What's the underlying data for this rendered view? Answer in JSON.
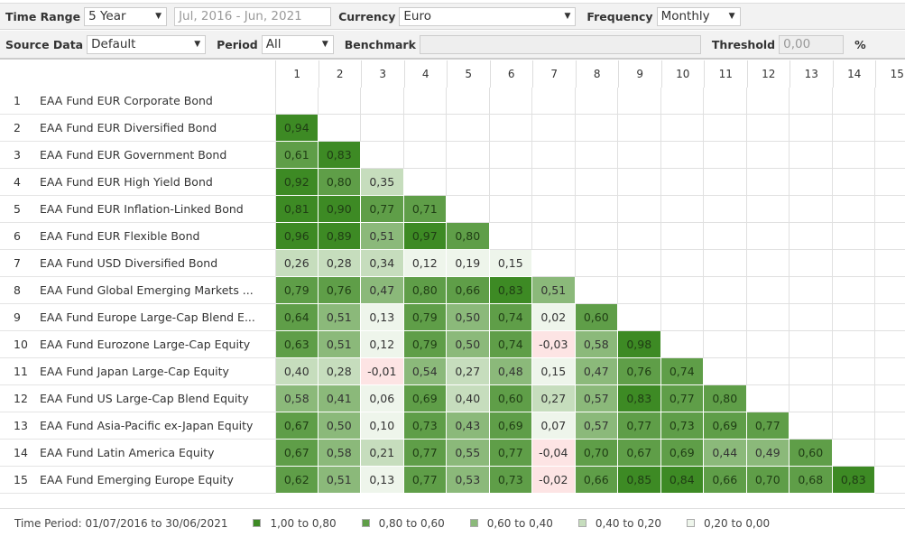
{
  "toolbar": {
    "time_range_label": "Time Range",
    "time_range_value": "5 Year",
    "date_range": "Jul, 2016 - Jun, 2021",
    "currency_label": "Currency",
    "currency_value": "Euro",
    "frequency_label": "Frequency",
    "frequency_value": "Monthly",
    "source_data_label": "Source Data",
    "source_data_value": "Default",
    "period_label": "Period",
    "period_value": "All",
    "benchmark_label": "Benchmark",
    "benchmark_value": "",
    "threshold_label": "Threshold",
    "threshold_placeholder": "0,00",
    "percent": "%"
  },
  "colors": {
    "l1": "#3d8a24",
    "l2": "#5f9e48",
    "l3": "#8bb97a",
    "l4": "#c6ddbd",
    "l5": "#eef5eb",
    "neg": "#fde4e4"
  },
  "columns": [
    "1",
    "2",
    "3",
    "4",
    "5",
    "6",
    "7",
    "8",
    "9",
    "10",
    "11",
    "12",
    "13",
    "14",
    "15"
  ],
  "rows": [
    {
      "n": "1",
      "name": "EAA Fund EUR Corporate Bond",
      "values": []
    },
    {
      "n": "2",
      "name": "EAA Fund EUR Diversified Bond",
      "values": [
        "0,94"
      ]
    },
    {
      "n": "3",
      "name": "EAA Fund EUR Government Bond",
      "values": [
        "0,61",
        "0,83"
      ]
    },
    {
      "n": "4",
      "name": "EAA Fund EUR High Yield Bond",
      "values": [
        "0,92",
        "0,80",
        "0,35"
      ]
    },
    {
      "n": "5",
      "name": "EAA Fund EUR Inflation-Linked Bond",
      "values": [
        "0,81",
        "0,90",
        "0,77",
        "0,71"
      ]
    },
    {
      "n": "6",
      "name": "EAA Fund EUR Flexible Bond",
      "values": [
        "0,96",
        "0,89",
        "0,51",
        "0,97",
        "0,80"
      ]
    },
    {
      "n": "7",
      "name": "EAA Fund USD Diversified Bond",
      "values": [
        "0,26",
        "0,28",
        "0,34",
        "0,12",
        "0,19",
        "0,15"
      ]
    },
    {
      "n": "8",
      "name": "EAA Fund Global Emerging Markets ...",
      "values": [
        "0,79",
        "0,76",
        "0,47",
        "0,80",
        "0,66",
        "0,83",
        "0,51"
      ]
    },
    {
      "n": "9",
      "name": "EAA Fund Europe Large-Cap Blend E...",
      "values": [
        "0,64",
        "0,51",
        "0,13",
        "0,79",
        "0,50",
        "0,74",
        "0,02",
        "0,60"
      ]
    },
    {
      "n": "10",
      "name": "EAA Fund Eurozone Large-Cap Equity",
      "values": [
        "0,63",
        "0,51",
        "0,12",
        "0,79",
        "0,50",
        "0,74",
        "-0,03",
        "0,58",
        "0,98"
      ]
    },
    {
      "n": "11",
      "name": "EAA Fund Japan Large-Cap Equity",
      "values": [
        "0,40",
        "0,28",
        "-0,01",
        "0,54",
        "0,27",
        "0,48",
        "0,15",
        "0,47",
        "0,76",
        "0,74"
      ]
    },
    {
      "n": "12",
      "name": "EAA Fund US Large-Cap Blend Equity",
      "values": [
        "0,58",
        "0,41",
        "0,06",
        "0,69",
        "0,40",
        "0,60",
        "0,27",
        "0,57",
        "0,83",
        "0,77",
        "0,80"
      ]
    },
    {
      "n": "13",
      "name": "EAA Fund Asia-Pacific ex-Japan Equity",
      "values": [
        "0,67",
        "0,50",
        "0,10",
        "0,73",
        "0,43",
        "0,69",
        "0,07",
        "0,57",
        "0,77",
        "0,73",
        "0,69",
        "0,77"
      ]
    },
    {
      "n": "14",
      "name": "EAA Fund Latin America Equity",
      "values": [
        "0,67",
        "0,58",
        "0,21",
        "0,77",
        "0,55",
        "0,77",
        "-0,04",
        "0,70",
        "0,67",
        "0,69",
        "0,44",
        "0,49",
        "0,60"
      ]
    },
    {
      "n": "15",
      "name": "EAA Fund Emerging Europe Equity",
      "values": [
        "0,62",
        "0,51",
        "0,13",
        "0,77",
        "0,53",
        "0,73",
        "-0,02",
        "0,66",
        "0,85",
        "0,84",
        "0,66",
        "0,70",
        "0,68",
        "0,83"
      ]
    }
  ],
  "legend": {
    "time_period": "Time Period: 01/07/2016 to 30/06/2021",
    "items": [
      {
        "label": "1,00 to 0,80",
        "level": "l1"
      },
      {
        "label": "0,80 to 0,60",
        "level": "l2"
      },
      {
        "label": "0,60 to 0,40",
        "level": "l3"
      },
      {
        "label": "0,40 to 0,20",
        "level": "l4"
      },
      {
        "label": "0,20 to 0,00",
        "level": "l5"
      }
    ]
  }
}
